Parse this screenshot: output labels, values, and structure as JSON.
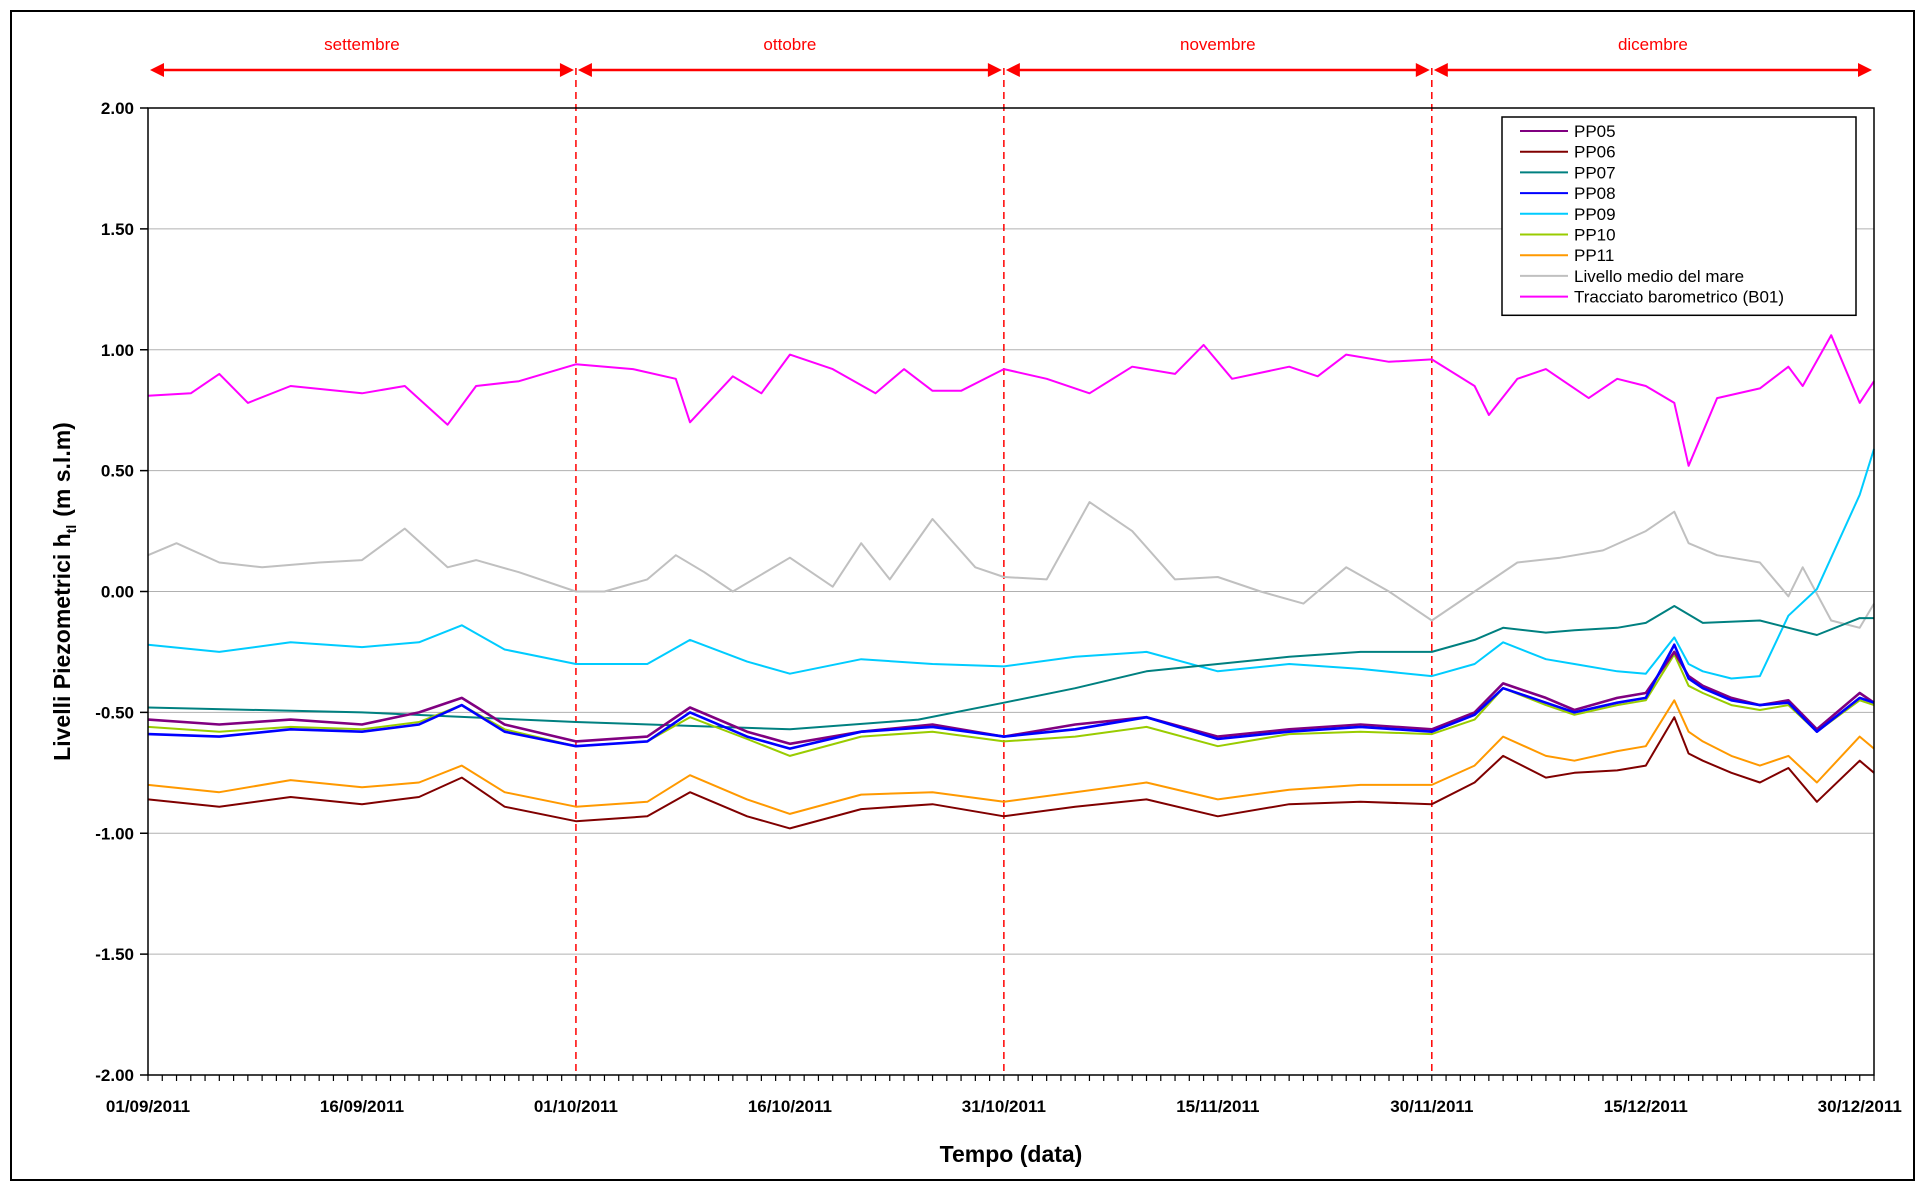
{
  "chart_data": {
    "type": "line",
    "xlabel": "Tempo (data)",
    "ylabel_main": "Livelli Piezometrici h",
    "ylabel_sub": "tl",
    "ylabel_unit": "(m s.l.m)",
    "x_start": "01/09/2011",
    "x_end": "31/12/2011",
    "x_ticks": [
      "01/09/2011",
      "16/09/2011",
      "01/10/2011",
      "16/10/2011",
      "31/10/2011",
      "15/11/2011",
      "30/11/2011",
      "15/12/2011",
      "30/12/2011"
    ],
    "ylim": [
      -2.0,
      2.0
    ],
    "y_ticks": [
      "2.00",
      "1.50",
      "1.00",
      "0.50",
      "0.00",
      "-0.50",
      "-1.00",
      "-1.50",
      "-2.00"
    ],
    "grid": "horizontal",
    "legend_position": "top-right",
    "periods": [
      {
        "label": "settembre",
        "start": "01/09/2011",
        "end": "01/10/2011"
      },
      {
        "label": "ottobre",
        "start": "01/10/2011",
        "end": "31/10/2011"
      },
      {
        "label": "novembre",
        "start": "31/10/2011",
        "end": "30/11/2011"
      },
      {
        "label": "dicembre",
        "start": "30/11/2011",
        "end": "31/12/2011"
      }
    ],
    "period_color": "#ff0000",
    "series": [
      {
        "name": "PP05",
        "color": "#800080",
        "x": [
          "01/09/2011",
          "06/09/2011",
          "11/09/2011",
          "16/09/2011",
          "20/09/2011",
          "23/09/2011",
          "26/09/2011",
          "01/10/2011",
          "06/10/2011",
          "09/10/2011",
          "13/10/2011",
          "16/10/2011",
          "21/10/2011",
          "26/10/2011",
          "31/10/2011",
          "05/11/2011",
          "10/11/2011",
          "15/11/2011",
          "20/11/2011",
          "25/11/2011",
          "30/11/2011",
          "03/12/2011",
          "05/12/2011",
          "08/12/2011",
          "10/12/2011",
          "13/12/2011",
          "15/12/2011",
          "17/12/2011",
          "18/12/2011",
          "19/12/2011",
          "21/12/2011",
          "23/12/2011",
          "25/12/2011",
          "27/12/2011",
          "30/12/2011",
          "31/12/2011"
        ],
        "y": [
          -0.53,
          -0.55,
          -0.53,
          -0.55,
          -0.5,
          -0.44,
          -0.55,
          -0.62,
          -0.6,
          -0.48,
          -0.58,
          -0.63,
          -0.58,
          -0.55,
          -0.6,
          -0.55,
          -0.52,
          -0.6,
          -0.57,
          -0.55,
          -0.57,
          -0.5,
          -0.38,
          -0.44,
          -0.49,
          -0.44,
          -0.42,
          -0.25,
          -0.35,
          -0.39,
          -0.44,
          -0.47,
          -0.45,
          -0.57,
          -0.42,
          -0.46
        ]
      },
      {
        "name": "PP06",
        "color": "#800000",
        "x": [
          "01/09/2011",
          "06/09/2011",
          "11/09/2011",
          "16/09/2011",
          "20/09/2011",
          "23/09/2011",
          "26/09/2011",
          "01/10/2011",
          "06/10/2011",
          "09/10/2011",
          "13/10/2011",
          "16/10/2011",
          "21/10/2011",
          "26/10/2011",
          "31/10/2011",
          "05/11/2011",
          "10/11/2011",
          "15/11/2011",
          "20/11/2011",
          "25/11/2011",
          "30/11/2011",
          "03/12/2011",
          "05/12/2011",
          "08/12/2011",
          "10/12/2011",
          "13/12/2011",
          "15/12/2011",
          "17/12/2011",
          "18/12/2011",
          "19/12/2011",
          "21/12/2011",
          "23/12/2011",
          "25/12/2011",
          "27/12/2011",
          "30/12/2011",
          "31/12/2011"
        ],
        "y": [
          -0.86,
          -0.89,
          -0.85,
          -0.88,
          -0.85,
          -0.77,
          -0.89,
          -0.95,
          -0.93,
          -0.83,
          -0.93,
          -0.98,
          -0.9,
          -0.88,
          -0.93,
          -0.89,
          -0.86,
          -0.93,
          -0.88,
          -0.87,
          -0.88,
          -0.79,
          -0.68,
          -0.77,
          -0.75,
          -0.74,
          -0.72,
          -0.52,
          -0.67,
          -0.7,
          -0.75,
          -0.79,
          -0.73,
          -0.87,
          -0.7,
          -0.75
        ]
      },
      {
        "name": "PP07",
        "color": "#008080",
        "x": [
          "01/09/2011",
          "16/09/2011",
          "01/10/2011",
          "16/10/2011",
          "25/10/2011",
          "31/10/2011",
          "05/11/2011",
          "10/11/2011",
          "15/11/2011",
          "20/11/2011",
          "25/11/2011",
          "30/11/2011",
          "03/12/2011",
          "05/12/2011",
          "08/12/2011",
          "10/12/2011",
          "13/12/2011",
          "15/12/2011",
          "17/12/2011",
          "19/12/2011",
          "23/12/2011",
          "27/12/2011",
          "30/12/2011",
          "31/12/2011"
        ],
        "y": [
          -0.48,
          -0.5,
          -0.54,
          -0.57,
          -0.53,
          -0.46,
          -0.4,
          -0.33,
          -0.3,
          -0.27,
          -0.25,
          -0.25,
          -0.2,
          -0.15,
          -0.17,
          -0.16,
          -0.15,
          -0.13,
          -0.06,
          -0.13,
          -0.12,
          -0.18,
          -0.11,
          -0.11
        ]
      },
      {
        "name": "PP08",
        "color": "#0000ff",
        "x": [
          "01/09/2011",
          "06/09/2011",
          "11/09/2011",
          "16/09/2011",
          "20/09/2011",
          "23/09/2011",
          "26/09/2011",
          "01/10/2011",
          "06/10/2011",
          "09/10/2011",
          "13/10/2011",
          "16/10/2011",
          "21/10/2011",
          "26/10/2011",
          "31/10/2011",
          "05/11/2011",
          "10/11/2011",
          "15/11/2011",
          "20/11/2011",
          "25/11/2011",
          "30/11/2011",
          "03/12/2011",
          "05/12/2011",
          "08/12/2011",
          "10/12/2011",
          "13/12/2011",
          "15/12/2011",
          "17/12/2011",
          "18/12/2011",
          "19/12/2011",
          "21/12/2011",
          "23/12/2011",
          "25/12/2011",
          "27/12/2011",
          "30/12/2011",
          "31/12/2011"
        ],
        "y": [
          -0.59,
          -0.6,
          -0.57,
          -0.58,
          -0.55,
          -0.47,
          -0.58,
          -0.64,
          -0.62,
          -0.5,
          -0.6,
          -0.65,
          -0.58,
          -0.56,
          -0.6,
          -0.57,
          -0.52,
          -0.61,
          -0.58,
          -0.56,
          -0.58,
          -0.51,
          -0.4,
          -0.46,
          -0.5,
          -0.46,
          -0.44,
          -0.22,
          -0.36,
          -0.4,
          -0.45,
          -0.47,
          -0.46,
          -0.58,
          -0.44,
          -0.46
        ]
      },
      {
        "name": "PP09",
        "color": "#00ccff",
        "x": [
          "01/09/2011",
          "06/09/2011",
          "11/09/2011",
          "16/09/2011",
          "20/09/2011",
          "23/09/2011",
          "26/09/2011",
          "01/10/2011",
          "06/10/2011",
          "09/10/2011",
          "13/10/2011",
          "16/10/2011",
          "21/10/2011",
          "26/10/2011",
          "31/10/2011",
          "05/11/2011",
          "10/11/2011",
          "15/11/2011",
          "20/11/2011",
          "25/11/2011",
          "30/11/2011",
          "03/12/2011",
          "05/12/2011",
          "08/12/2011",
          "10/12/2011",
          "13/12/2011",
          "15/12/2011",
          "17/12/2011",
          "18/12/2011",
          "19/12/2011",
          "21/12/2011",
          "23/12/2011",
          "25/12/2011",
          "27/12/2011",
          "30/12/2011",
          "31/12/2011"
        ],
        "y": [
          -0.22,
          -0.25,
          -0.21,
          -0.23,
          -0.21,
          -0.14,
          -0.24,
          -0.3,
          -0.3,
          -0.2,
          -0.29,
          -0.34,
          -0.28,
          -0.3,
          -0.31,
          -0.27,
          -0.25,
          -0.33,
          -0.3,
          -0.32,
          -0.35,
          -0.3,
          -0.21,
          -0.28,
          -0.3,
          -0.33,
          -0.34,
          -0.19,
          -0.3,
          -0.33,
          -0.36,
          -0.35,
          -0.1,
          0.01,
          0.4,
          0.59
        ]
      },
      {
        "name": "PP10",
        "color": "#99cc00",
        "x": [
          "01/09/2011",
          "06/09/2011",
          "11/09/2011",
          "16/09/2011",
          "20/09/2011",
          "23/09/2011",
          "26/09/2011",
          "01/10/2011",
          "06/10/2011",
          "09/10/2011",
          "13/10/2011",
          "16/10/2011",
          "21/10/2011",
          "26/10/2011",
          "31/10/2011",
          "05/11/2011",
          "10/11/2011",
          "15/11/2011",
          "20/11/2011",
          "25/11/2011",
          "30/11/2011",
          "03/12/2011",
          "05/12/2011",
          "08/12/2011",
          "10/12/2011",
          "13/12/2011",
          "15/12/2011",
          "17/12/2011",
          "18/12/2011",
          "19/12/2011",
          "21/12/2011",
          "23/12/2011",
          "25/12/2011",
          "27/12/2011",
          "30/12/2011",
          "31/12/2011"
        ],
        "y": [
          -0.56,
          -0.58,
          -0.56,
          -0.57,
          -0.54,
          -0.47,
          -0.57,
          -0.64,
          -0.62,
          -0.52,
          -0.61,
          -0.68,
          -0.6,
          -0.58,
          -0.62,
          -0.6,
          -0.56,
          -0.64,
          -0.59,
          -0.58,
          -0.59,
          -0.53,
          -0.4,
          -0.47,
          -0.51,
          -0.47,
          -0.45,
          -0.26,
          -0.39,
          -0.42,
          -0.47,
          -0.49,
          -0.47,
          -0.58,
          -0.45,
          -0.47
        ]
      },
      {
        "name": "PP11",
        "color": "#ff9900",
        "x": [
          "01/09/2011",
          "06/09/2011",
          "11/09/2011",
          "16/09/2011",
          "20/09/2011",
          "23/09/2011",
          "26/09/2011",
          "01/10/2011",
          "06/10/2011",
          "09/10/2011",
          "13/10/2011",
          "16/10/2011",
          "21/10/2011",
          "26/10/2011",
          "31/10/2011",
          "05/11/2011",
          "10/11/2011",
          "15/11/2011",
          "20/11/2011",
          "25/11/2011",
          "30/11/2011",
          "03/12/2011",
          "05/12/2011",
          "08/12/2011",
          "10/12/2011",
          "13/12/2011",
          "15/12/2011",
          "17/12/2011",
          "18/12/2011",
          "19/12/2011",
          "21/12/2011",
          "23/12/2011",
          "25/12/2011",
          "27/12/2011",
          "30/12/2011",
          "31/12/2011"
        ],
        "y": [
          -0.8,
          -0.83,
          -0.78,
          -0.81,
          -0.79,
          -0.72,
          -0.83,
          -0.89,
          -0.87,
          -0.76,
          -0.86,
          -0.92,
          -0.84,
          -0.83,
          -0.87,
          -0.83,
          -0.79,
          -0.86,
          -0.82,
          -0.8,
          -0.8,
          -0.72,
          -0.6,
          -0.68,
          -0.7,
          -0.66,
          -0.64,
          -0.45,
          -0.58,
          -0.62,
          -0.68,
          -0.72,
          -0.68,
          -0.79,
          -0.6,
          -0.65
        ]
      },
      {
        "name": "Livello medio del mare",
        "color": "#c0c0c0",
        "x": [
          "01/09/2011",
          "03/09/2011",
          "06/09/2011",
          "09/09/2011",
          "13/09/2011",
          "16/09/2011",
          "19/09/2011",
          "22/09/2011",
          "24/09/2011",
          "27/09/2011",
          "01/10/2011",
          "03/10/2011",
          "06/10/2011",
          "08/10/2011",
          "10/10/2011",
          "12/10/2011",
          "16/10/2011",
          "19/10/2011",
          "21/10/2011",
          "23/10/2011",
          "26/10/2011",
          "29/10/2011",
          "31/10/2011",
          "03/11/2011",
          "06/11/2011",
          "09/11/2011",
          "12/11/2011",
          "15/11/2011",
          "18/11/2011",
          "21/11/2011",
          "24/11/2011",
          "27/11/2011",
          "30/11/2011",
          "03/12/2011",
          "06/12/2011",
          "09/12/2011",
          "12/12/2011",
          "15/12/2011",
          "17/12/2011",
          "18/12/2011",
          "20/12/2011",
          "23/12/2011",
          "25/12/2011",
          "26/12/2011",
          "28/12/2011",
          "30/12/2011",
          "31/12/2011"
        ],
        "y": [
          0.15,
          0.2,
          0.12,
          0.1,
          0.12,
          0.13,
          0.26,
          0.1,
          0.13,
          0.08,
          0.0,
          0.0,
          0.05,
          0.15,
          0.08,
          0.0,
          0.14,
          0.02,
          0.2,
          0.05,
          0.3,
          0.1,
          0.06,
          0.05,
          0.37,
          0.25,
          0.05,
          0.06,
          0.0,
          -0.05,
          0.1,
          0.0,
          -0.12,
          0.0,
          0.12,
          0.14,
          0.17,
          0.25,
          0.33,
          0.2,
          0.15,
          0.12,
          -0.02,
          0.1,
          -0.12,
          -0.15,
          -0.05
        ]
      },
      {
        "name": "Tracciato barometrico (B01)",
        "color": "#ff00ff",
        "x": [
          "01/09/2011",
          "04/09/2011",
          "06/09/2011",
          "08/09/2011",
          "11/09/2011",
          "16/09/2011",
          "19/09/2011",
          "22/09/2011",
          "24/09/2011",
          "27/09/2011",
          "01/10/2011",
          "05/10/2011",
          "08/10/2011",
          "09/10/2011",
          "12/10/2011",
          "14/10/2011",
          "16/10/2011",
          "19/10/2011",
          "22/10/2011",
          "24/10/2011",
          "26/10/2011",
          "28/10/2011",
          "31/10/2011",
          "03/11/2011",
          "06/11/2011",
          "09/11/2011",
          "12/11/2011",
          "14/11/2011",
          "16/11/2011",
          "20/11/2011",
          "22/11/2011",
          "24/11/2011",
          "27/11/2011",
          "30/11/2011",
          "03/12/2011",
          "04/12/2011",
          "06/12/2011",
          "08/12/2011",
          "11/12/2011",
          "13/12/2011",
          "15/12/2011",
          "17/12/2011",
          "18/12/2011",
          "20/12/2011",
          "23/12/2011",
          "25/12/2011",
          "26/12/2011",
          "28/12/2011",
          "30/12/2011",
          "31/12/2011"
        ],
        "y": [
          0.81,
          0.82,
          0.9,
          0.78,
          0.85,
          0.82,
          0.85,
          0.69,
          0.85,
          0.87,
          0.94,
          0.92,
          0.88,
          0.7,
          0.89,
          0.82,
          0.98,
          0.92,
          0.82,
          0.92,
          0.83,
          0.83,
          0.92,
          0.88,
          0.82,
          0.93,
          0.9,
          1.02,
          0.88,
          0.93,
          0.89,
          0.98,
          0.95,
          0.96,
          0.85,
          0.73,
          0.88,
          0.92,
          0.8,
          0.88,
          0.85,
          0.78,
          0.52,
          0.8,
          0.84,
          0.93,
          0.85,
          1.06,
          0.78,
          0.87
        ]
      }
    ]
  }
}
